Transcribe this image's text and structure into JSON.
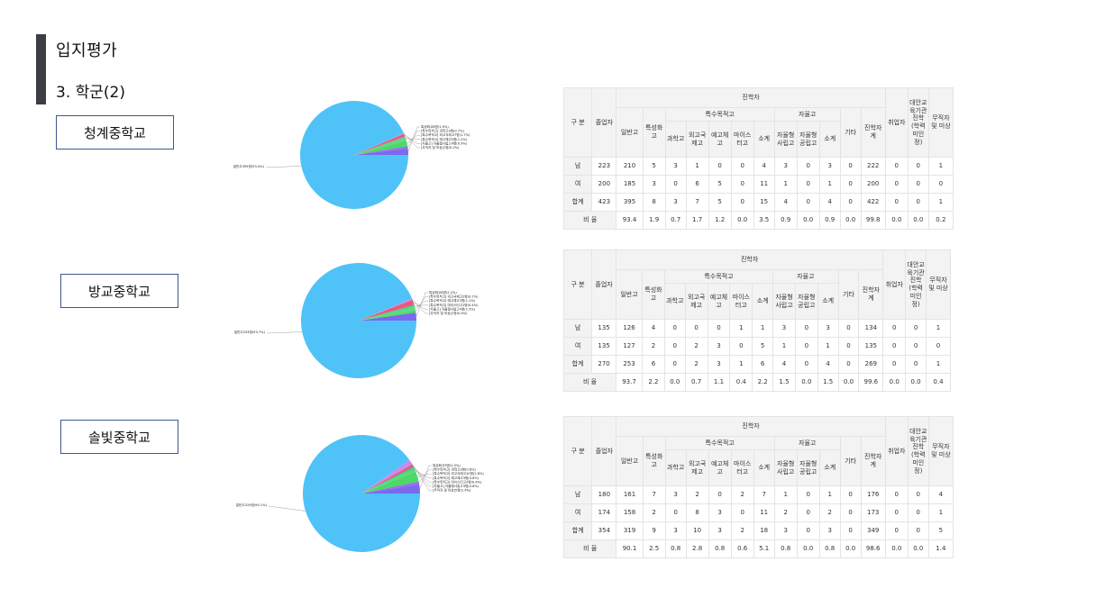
{
  "page": {
    "title": "입지평가",
    "subtitle": "3. 학군(2)"
  },
  "table_headers": {
    "gubun": "구 분",
    "graduates": "졸업자",
    "advanced": "진학자",
    "general": "일반고",
    "characteristic": "특성화고",
    "special_purpose": "특수목적고",
    "science": "과학고",
    "foreign_lang": "외고국제고",
    "arts": "예고체고",
    "meister": "마이스터고",
    "subtotal": "소계",
    "autonomous": "자율고",
    "auto_private": "자율형사립고",
    "auto_public": "자율형공립고",
    "other": "기타",
    "adv_total": "진학자계",
    "employed": "취업자",
    "alt_edu": "대안교육기관진학(학력미인정)",
    "no_job": "무직자 및 미상"
  },
  "schools": [
    {
      "name": "청계중학교",
      "pie_labels": [
        "일반고395명(93.4%)",
        "특성화고8명(1.9%)",
        "[특수목적고] 과학고3명(0.7%)",
        "[특수목적고] 외고국제고7명(1.7%)",
        "[특수목적고] 예고체고5명(1.2%)",
        "[자율고] 자율형사립고4명(0.9%)",
        "[무직자 및 미상]1명(0.2%)"
      ],
      "rows": [
        {
          "label": "남",
          "values": [
            "223",
            "210",
            "5",
            "3",
            "1",
            "0",
            "0",
            "4",
            "3",
            "0",
            "3",
            "0",
            "222",
            "0",
            "0",
            "1"
          ]
        },
        {
          "label": "여",
          "values": [
            "200",
            "185",
            "3",
            "0",
            "6",
            "5",
            "0",
            "11",
            "1",
            "0",
            "1",
            "0",
            "200",
            "0",
            "0",
            "0"
          ]
        },
        {
          "label": "합계",
          "values": [
            "423",
            "395",
            "8",
            "3",
            "7",
            "5",
            "0",
            "15",
            "4",
            "0",
            "4",
            "0",
            "422",
            "0",
            "0",
            "1"
          ]
        },
        {
          "label": "비 율",
          "values": [
            "93.4",
            "1.9",
            "0.7",
            "1.7",
            "1.2",
            "0.0",
            "3.5",
            "0.9",
            "0.0",
            "0.9",
            "0.0",
            "99.8",
            "0.0",
            "0.0",
            "0.2"
          ]
        }
      ]
    },
    {
      "name": "방교중학교",
      "pie_labels": [
        "일반고253명(93.7%)",
        "특성화고6명(2.2%)",
        "[특수목적고] 외고국제고2명(0.7%)",
        "[특수목적고] 예고체고3명(1.1%)",
        "[특수목적고] 마이스터고1명(0.4%)",
        "[자율고] 자율형사립고4명(1.5%)",
        "[무직자 및 미상]1명(0.4%)"
      ],
      "rows": [
        {
          "label": "남",
          "values": [
            "135",
            "126",
            "4",
            "0",
            "0",
            "0",
            "1",
            "1",
            "3",
            "0",
            "3",
            "0",
            "134",
            "0",
            "0",
            "1"
          ]
        },
        {
          "label": "여",
          "values": [
            "135",
            "127",
            "2",
            "0",
            "2",
            "3",
            "0",
            "5",
            "1",
            "0",
            "1",
            "0",
            "135",
            "0",
            "0",
            "0"
          ]
        },
        {
          "label": "합계",
          "values": [
            "270",
            "253",
            "6",
            "0",
            "2",
            "3",
            "1",
            "6",
            "4",
            "0",
            "4",
            "0",
            "269",
            "0",
            "0",
            "1"
          ]
        },
        {
          "label": "비 율",
          "values": [
            "93.7",
            "2.2",
            "0.0",
            "0.7",
            "1.1",
            "0.4",
            "2.2",
            "1.5",
            "0.0",
            "1.5",
            "0.0",
            "99.6",
            "0.0",
            "0.0",
            "0.4"
          ]
        }
      ]
    },
    {
      "name": "솔빛중학교",
      "pie_labels": [
        "일반고319명(90.1%)",
        "특성화고9명(2.5%)",
        "[특수목적고] 과학고3명(0.8%)",
        "[특수목적고] 외고국제고10명(2.8%)",
        "[특수목적고] 예고체고3명(0.8%)",
        "[특수목적고] 마이스터고2명(0.6%)",
        "[자율고] 자율형사립고3명(0.8%)",
        "[무직자 및 미상]5명(1.4%)"
      ],
      "rows": [
        {
          "label": "남",
          "values": [
            "180",
            "161",
            "7",
            "3",
            "2",
            "0",
            "2",
            "7",
            "1",
            "0",
            "1",
            "0",
            "176",
            "0",
            "0",
            "4"
          ]
        },
        {
          "label": "여",
          "values": [
            "174",
            "158",
            "2",
            "0",
            "8",
            "3",
            "0",
            "11",
            "2",
            "0",
            "2",
            "0",
            "173",
            "0",
            "0",
            "1"
          ]
        },
        {
          "label": "합계",
          "values": [
            "354",
            "319",
            "9",
            "3",
            "10",
            "3",
            "2",
            "18",
            "3",
            "0",
            "3",
            "0",
            "349",
            "0",
            "0",
            "5"
          ]
        },
        {
          "label": "비 율",
          "values": [
            "90.1",
            "2.5",
            "0.8",
            "2.8",
            "0.8",
            "0.6",
            "5.1",
            "0.8",
            "0.0",
            "0.8",
            "0.0",
            "98.6",
            "0.0",
            "0.0",
            "1.4"
          ]
        }
      ]
    }
  ],
  "chart_data": [
    {
      "type": "pie",
      "categories": [
        "일반고",
        "특성화고",
        "과학고",
        "외고국제고",
        "예고체고",
        "자율형사립고",
        "무직자 및 미상"
      ],
      "values": [
        93.4,
        1.9,
        0.7,
        1.7,
        1.2,
        0.9,
        0.2
      ],
      "colors": [
        "#4fc3f7",
        "#7b68ee",
        "#9b6ef3",
        "#4cd964",
        "#5bd98a",
        "#e85a7a",
        "#c98bf0"
      ]
    },
    {
      "type": "pie",
      "categories": [
        "일반고",
        "특성화고",
        "외고국제고",
        "예고체고",
        "마이스터고",
        "자율형사립고",
        "무직자 및 미상"
      ],
      "values": [
        93.7,
        2.2,
        0.7,
        1.1,
        0.4,
        1.5,
        0.4
      ],
      "colors": [
        "#4fc3f7",
        "#7b68ee",
        "#4cd964",
        "#5bd98a",
        "#3ccf74",
        "#e85a7a",
        "#c98bf0"
      ]
    },
    {
      "type": "pie",
      "categories": [
        "일반고",
        "특성화고",
        "과학고",
        "외고국제고",
        "예고체고",
        "마이스터고",
        "자율형사립고",
        "무직자 및 미상"
      ],
      "values": [
        90.1,
        2.5,
        0.8,
        2.8,
        0.8,
        0.6,
        0.8,
        1.4
      ],
      "colors": [
        "#4fc3f7",
        "#7b68ee",
        "#9b6ef3",
        "#4cd964",
        "#5bd98a",
        "#3ccf74",
        "#e85a7a",
        "#c98bf0"
      ]
    }
  ]
}
